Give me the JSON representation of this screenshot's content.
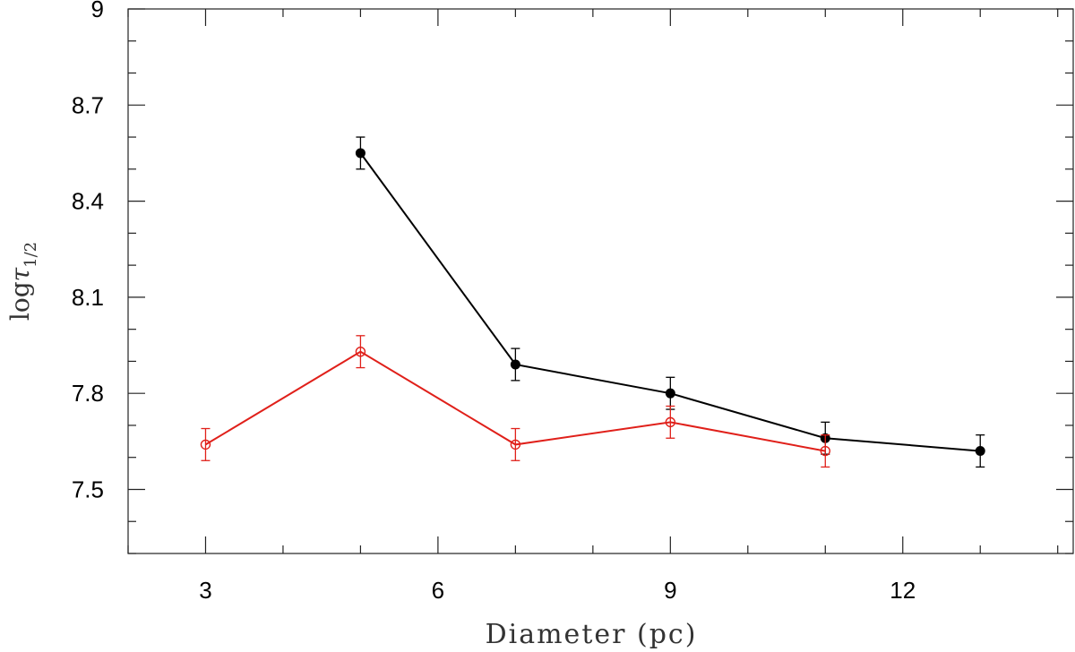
{
  "chart_data": {
    "type": "line",
    "title": "",
    "xlabel": "Diameter (pc)",
    "ylabel_main": "log",
    "ylabel_symbol": "τ",
    "ylabel_sub": "1/2",
    "xlim": [
      2,
      14.2
    ],
    "ylim": [
      7.3,
      9.0
    ],
    "x_ticks": [
      3,
      6,
      9,
      12
    ],
    "x_tick_labels": [
      "3",
      "6",
      "9",
      "12"
    ],
    "y_ticks": [
      7.5,
      7.8,
      8.1,
      8.4,
      8.7,
      9.0
    ],
    "y_tick_labels": [
      "7.5",
      "7.8",
      "8.1",
      "8.4",
      "8.7",
      "9"
    ],
    "x_minor_step": 1,
    "y_minor_step": 0.1,
    "grid": false,
    "series": [
      {
        "marker": "filled-circle",
        "color": "#000000",
        "x": [
          5,
          7,
          9,
          11,
          13
        ],
        "y": [
          8.55,
          7.89,
          7.8,
          7.66,
          7.62
        ],
        "err": [
          0.05,
          0.05,
          0.05,
          0.05,
          0.05
        ]
      },
      {
        "marker": "open-circle",
        "color": "#e0201a",
        "x": [
          3,
          5,
          7,
          9,
          11
        ],
        "y": [
          7.64,
          7.93,
          7.64,
          7.71,
          7.62
        ],
        "err": [
          0.05,
          0.05,
          0.05,
          0.05,
          0.05
        ]
      }
    ]
  }
}
